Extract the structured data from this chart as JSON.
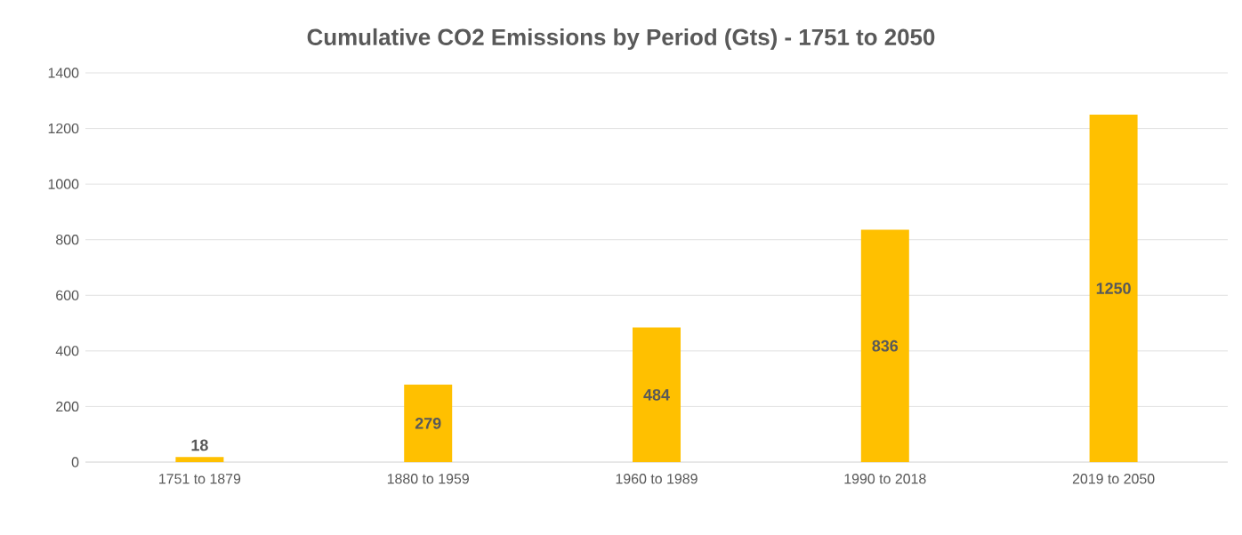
{
  "chart_data": {
    "type": "bar",
    "title": "Cumulative CO2 Emissions by Period (Gts) - 1751 to 2050",
    "categories": [
      "1751 to 1879",
      "1880 to 1959",
      "1960 to 1989",
      "1990 to 2018",
      "2019 to 2050"
    ],
    "values": [
      18,
      279,
      484,
      836,
      1250
    ],
    "color": "#ffc000",
    "ylim": [
      0,
      1400
    ],
    "yticks": [
      0,
      200,
      400,
      600,
      800,
      1000,
      1200,
      1400
    ],
    "grid": "y",
    "data_labels": true
  }
}
